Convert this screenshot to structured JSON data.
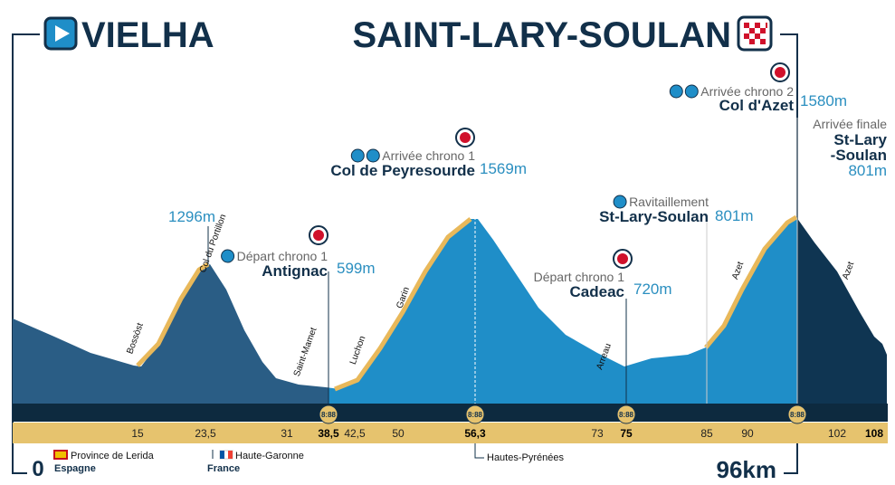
{
  "header": {
    "start": "VIELHA",
    "finish": "SAINT-LARY-SOULAN"
  },
  "distance": {
    "start": "0",
    "end": "96km"
  },
  "km_markers": [
    "15",
    "23,5",
    "31",
    "38,5",
    "42,5",
    "50",
    "56,3",
    "73",
    "75",
    "85",
    "90",
    "102",
    "108"
  ],
  "regions": [
    {
      "name": "Province de Lerida",
      "country": "Espagne"
    },
    {
      "name": "Haute-Garonne",
      "country": "France"
    },
    {
      "name": "Hautes-Pyrénées"
    }
  ],
  "places": [
    "Bossòst",
    "Col du Portillon",
    "Saint-Mamet",
    "Luchon",
    "Garin",
    "Arreau",
    "Azet",
    "Azet"
  ],
  "summit": "1296m",
  "waypoints": [
    {
      "note": "Départ chrono 1",
      "name": "Antignac",
      "altitude": "599m"
    },
    {
      "note": "Arrivée chrono 1",
      "name": "Col de Peyresourde",
      "altitude": "1569m"
    },
    {
      "note": "Ravitaillement",
      "name": "St-Lary-Soulan",
      "altitude": "801m"
    },
    {
      "note": "Départ chrono 1",
      "name": "Cadeac",
      "altitude": "720m"
    },
    {
      "note": "Arrivée chrono 2",
      "name": "Col d'Azet",
      "altitude": "1580m"
    }
  ],
  "final": {
    "note": "Arrivée finale",
    "name": [
      "St-Lary",
      "-Soulan"
    ],
    "altitude": "801m"
  },
  "clock": "8:88"
}
